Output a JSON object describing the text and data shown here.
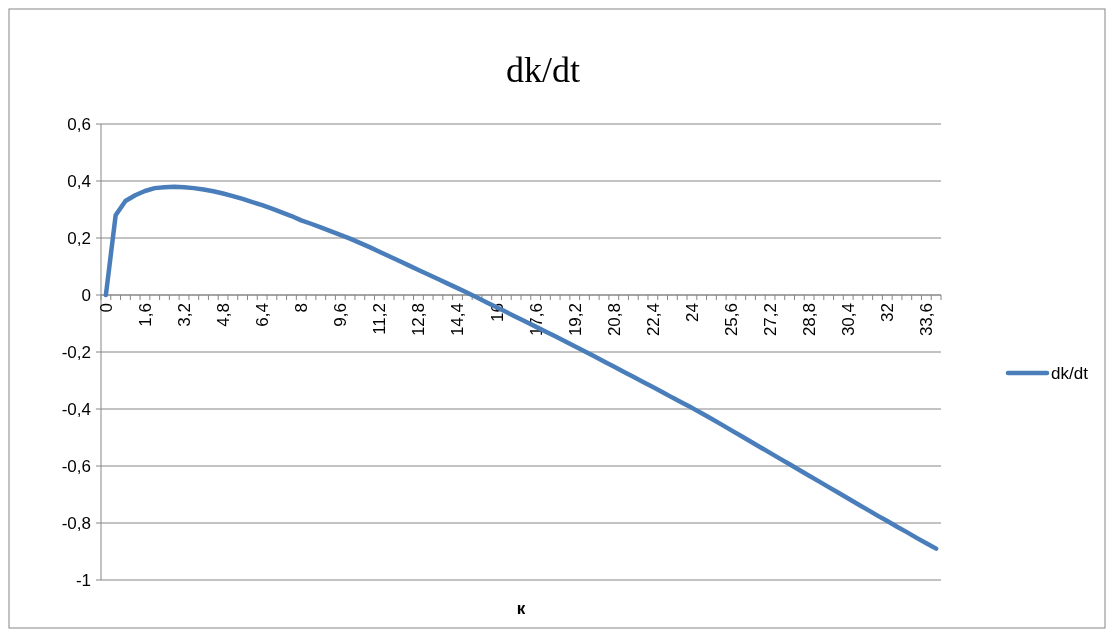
{
  "chart_data": {
    "type": "line",
    "title": "dk/dt",
    "xlabel": "к",
    "categories": [
      "0",
      null,
      null,
      null,
      "1,6",
      null,
      null,
      null,
      "3,2",
      null,
      null,
      null,
      "4,8",
      null,
      null,
      null,
      "6,4",
      null,
      null,
      null,
      "8",
      null,
      null,
      null,
      "9,6",
      null,
      null,
      null,
      "11,2",
      null,
      null,
      null,
      "12,8",
      null,
      null,
      null,
      "14,4",
      null,
      null,
      null,
      "16",
      null,
      null,
      null,
      "17,6",
      null,
      null,
      null,
      "19,2",
      null,
      null,
      null,
      "20,8",
      null,
      null,
      null,
      "22,4",
      null,
      null,
      null,
      "24",
      null,
      null,
      null,
      "25,6",
      null,
      null,
      null,
      "27,2",
      null,
      null,
      null,
      "28,8",
      null,
      null,
      null,
      "30,4",
      null,
      null,
      null,
      "32",
      null,
      null,
      null,
      "33,6",
      null
    ],
    "series": [
      {
        "name": "dk/dt",
        "color": "#4a7ebb",
        "values": [
          0,
          0.28,
          0.33,
          0.35,
          0.365,
          0.375,
          0.378,
          0.38,
          0.378,
          0.375,
          0.37,
          0.364,
          0.356,
          0.347,
          0.337,
          0.326,
          0.315,
          0.303,
          0.29,
          0.277,
          0.262,
          0.25,
          0.237,
          0.224,
          0.211,
          0.198,
          0.183,
          0.168,
          0.152,
          0.136,
          0.12,
          0.104,
          0.088,
          0.072,
          0.056,
          0.04,
          0.024,
          0.008,
          -0.009,
          -0.026,
          -0.043,
          -0.06,
          -0.077,
          -0.094,
          -0.111,
          -0.128,
          -0.145,
          -0.162,
          -0.18,
          -0.197,
          -0.215,
          -0.233,
          -0.251,
          -0.269,
          -0.287,
          -0.305,
          -0.323,
          -0.341,
          -0.36,
          -0.378,
          -0.396,
          -0.415,
          -0.434,
          -0.454,
          -0.474,
          -0.494,
          -0.514,
          -0.534,
          -0.554,
          -0.574,
          -0.594,
          -0.614,
          -0.634,
          -0.654,
          -0.674,
          -0.694,
          -0.714,
          -0.734,
          -0.754,
          -0.774,
          -0.793,
          -0.813,
          -0.832,
          -0.852,
          -0.871,
          -0.89
        ]
      }
    ],
    "ylim": [
      -1,
      0.6
    ],
    "yticks": [
      {
        "value": -1,
        "label": "-1"
      },
      {
        "value": -0.8,
        "label": "-0,8"
      },
      {
        "value": -0.6,
        "label": "-0,6"
      },
      {
        "value": -0.4,
        "label": "-0,4"
      },
      {
        "value": -0.2,
        "label": "-0,2"
      },
      {
        "value": 0,
        "label": "0"
      },
      {
        "value": 0.2,
        "label": "0,2"
      },
      {
        "value": 0.4,
        "label": "0,4"
      },
      {
        "value": 0.6,
        "label": "0,6"
      }
    ],
    "grid": "y",
    "legend": "right",
    "marker": "none",
    "line_style": "solid"
  }
}
